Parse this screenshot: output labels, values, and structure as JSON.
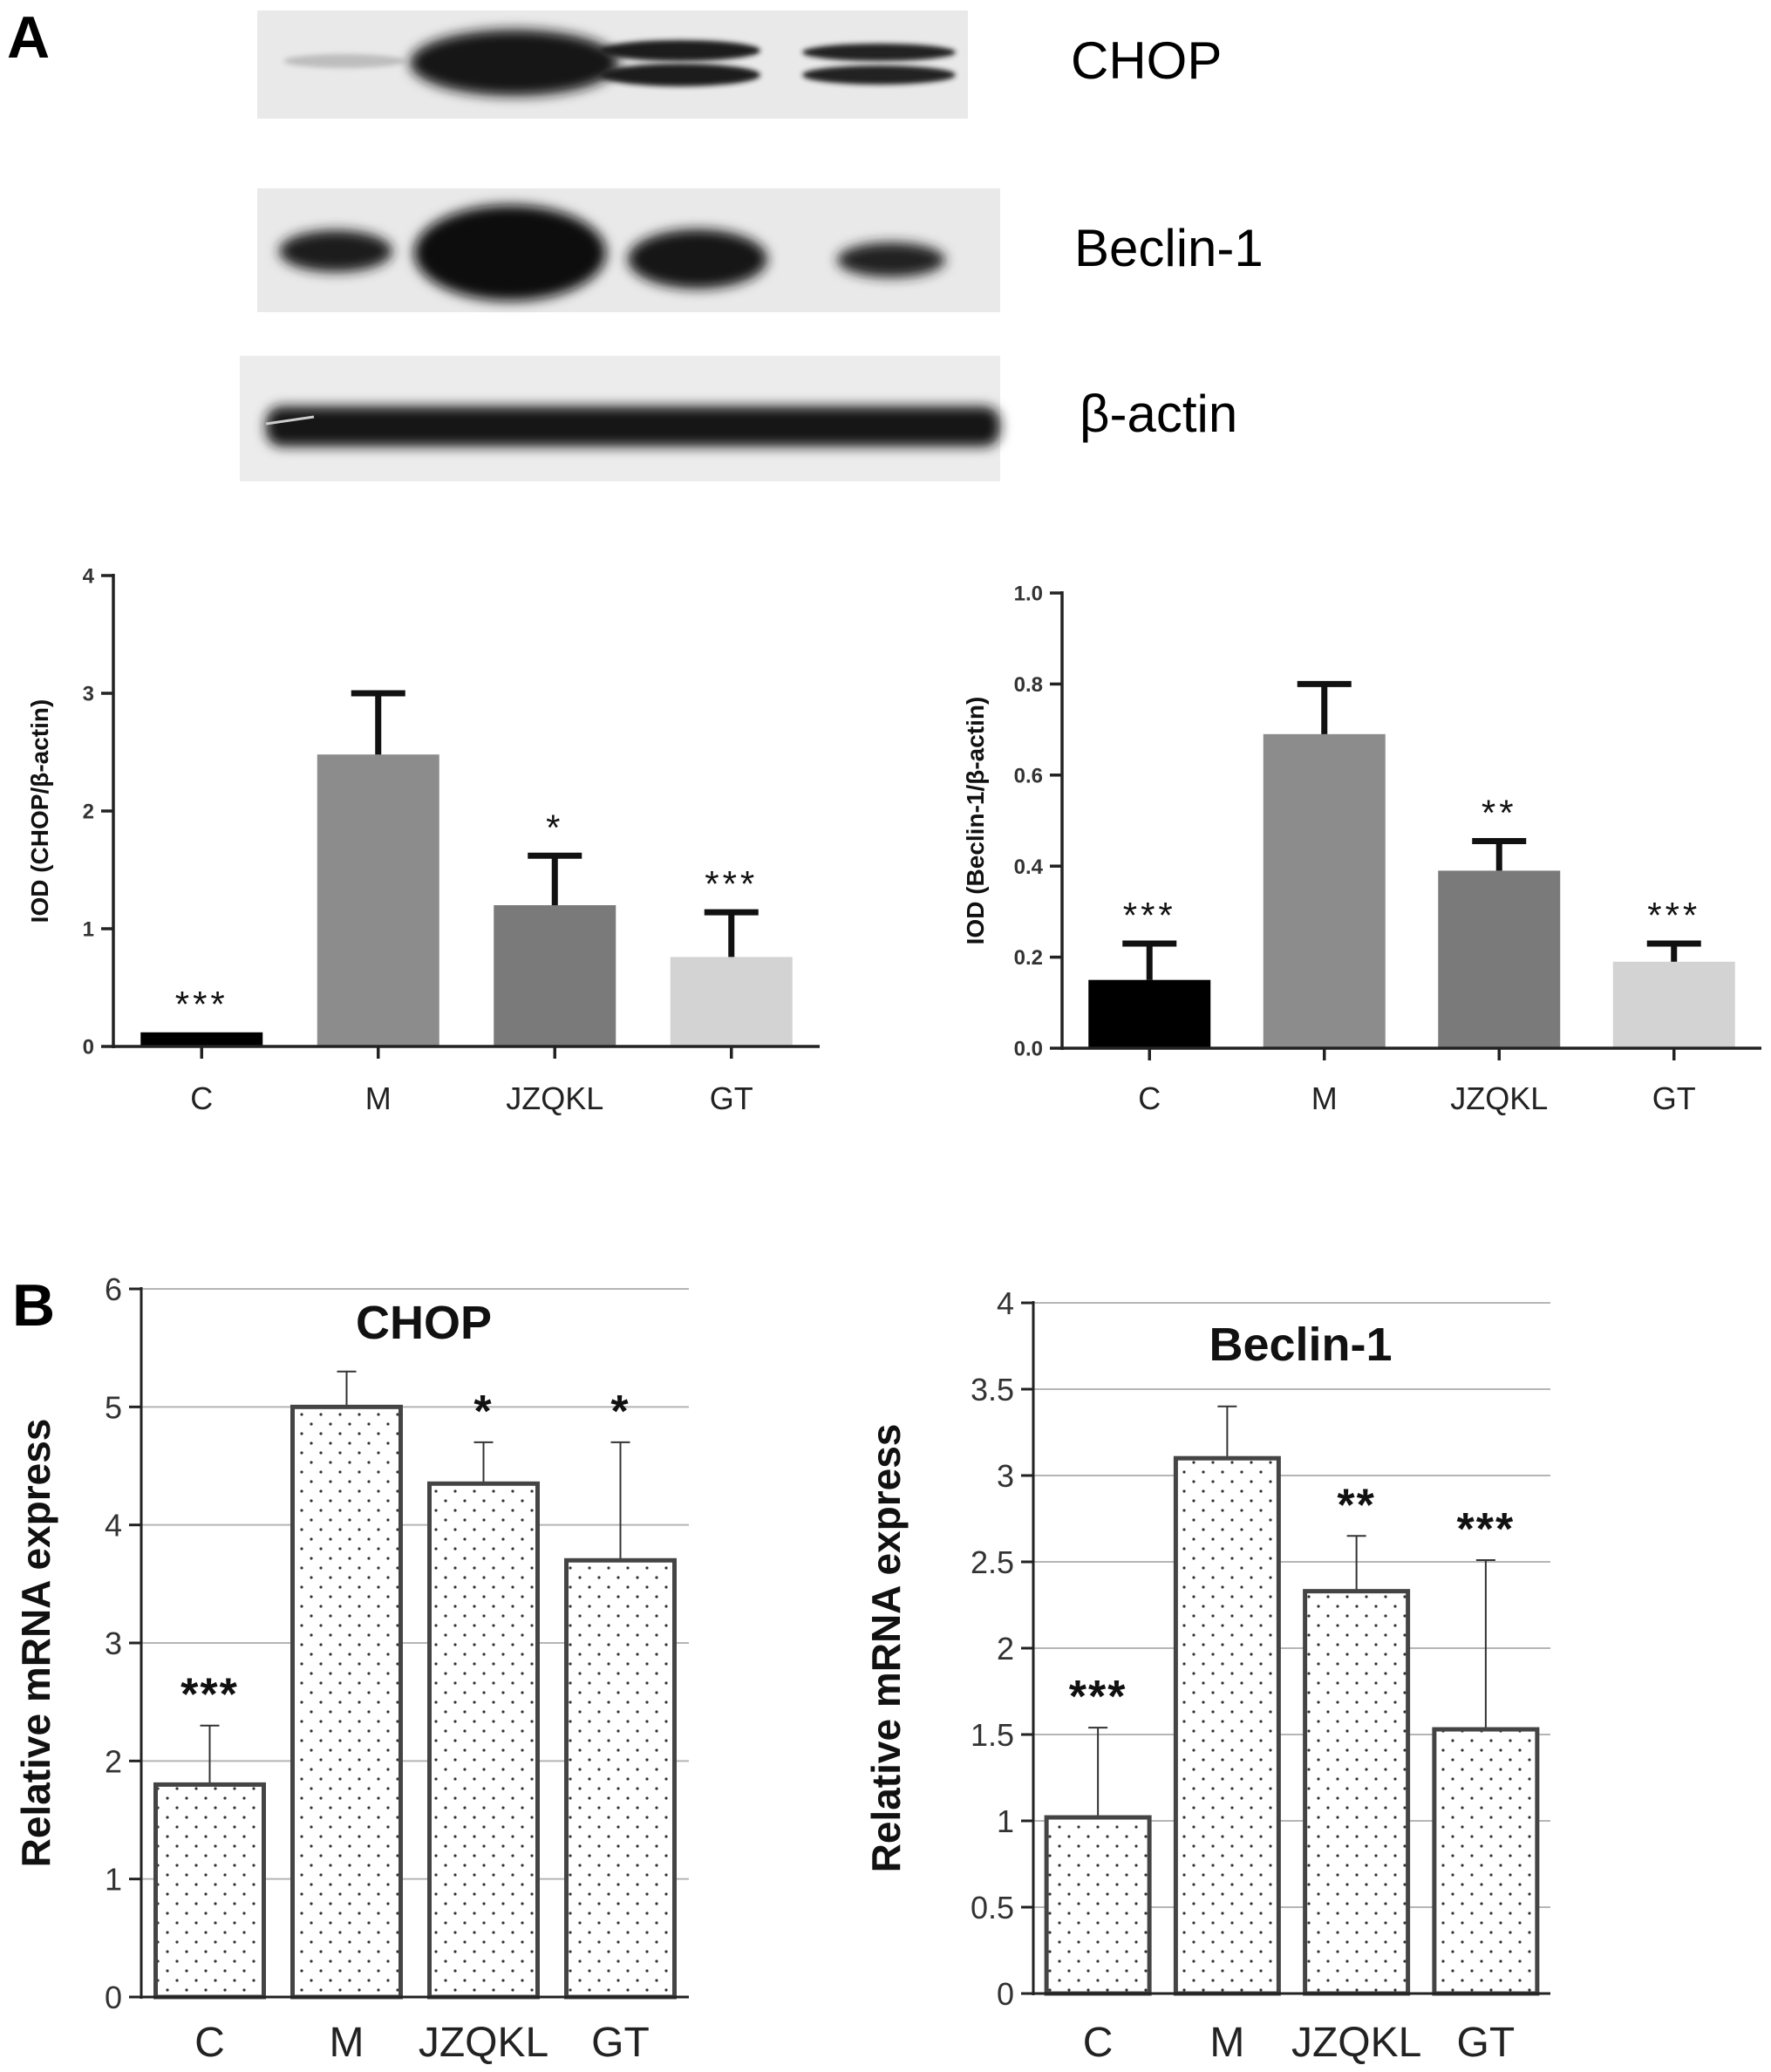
{
  "panel_labels": {
    "a": "A",
    "b": "B"
  },
  "blot": {
    "bands": [
      "CHOP",
      "Beclin-1",
      "β-actin"
    ]
  },
  "chart_data": [
    {
      "id": "a_chop",
      "type": "bar",
      "categories": [
        "C",
        "M",
        "JZQKL",
        "GT"
      ],
      "values": [
        0.12,
        2.48,
        1.2,
        0.76
      ],
      "errors": [
        0.0,
        0.52,
        0.42,
        0.38
      ],
      "annotations": [
        "***",
        "",
        "*",
        "***"
      ],
      "colors": [
        "#000000",
        "#8c8c8c",
        "#7a7a7a",
        "#d3d3d3"
      ],
      "ylabel": "IOD (CHOP/β-actin)",
      "ylim": [
        0,
        4
      ],
      "yticks": [
        "0",
        "1",
        "2",
        "3",
        "4"
      ],
      "grid": false
    },
    {
      "id": "a_beclin",
      "type": "bar",
      "categories": [
        "C",
        "M",
        "JZQKL",
        "GT"
      ],
      "values": [
        0.15,
        0.69,
        0.39,
        0.19
      ],
      "errors": [
        0.08,
        0.11,
        0.065,
        0.04
      ],
      "annotations": [
        "***",
        "",
        "**",
        "***"
      ],
      "colors": [
        "#000000",
        "#8c8c8c",
        "#7a7a7a",
        "#d3d3d3"
      ],
      "ylabel": "IOD (Beclin-1/β-actin)",
      "ylim": [
        0,
        1.0
      ],
      "yticks": [
        "0.0",
        "0.2",
        "0.4",
        "0.6",
        "0.8",
        "1.0"
      ],
      "grid": false
    },
    {
      "id": "b_chop",
      "type": "bar",
      "title": "CHOP",
      "categories": [
        "C",
        "M",
        "JZQKL",
        "GT"
      ],
      "values": [
        1.8,
        5.0,
        4.35,
        3.7
      ],
      "errors": [
        0.5,
        0.3,
        0.35,
        1.0
      ],
      "annotations": [
        "***",
        "",
        "*",
        "*"
      ],
      "ylabel": "Relative mRNA express",
      "ylim": [
        0,
        6
      ],
      "yticks": [
        "0",
        "1",
        "2",
        "3",
        "4",
        "5",
        "6"
      ],
      "grid": true,
      "fill": "dotted"
    },
    {
      "id": "b_beclin",
      "type": "bar",
      "title": "Beclin-1",
      "categories": [
        "C",
        "M",
        "JZQKL",
        "GT"
      ],
      "values": [
        1.02,
        3.1,
        2.33,
        1.53
      ],
      "errors": [
        0.52,
        0.3,
        0.32,
        0.98
      ],
      "annotations": [
        "***",
        "",
        "**",
        "***"
      ],
      "ylabel": "Relative mRNA express",
      "ylim": [
        0,
        4
      ],
      "yticks": [
        "0",
        "0.5",
        "1",
        "1.5",
        "2",
        "2.5",
        "3",
        "3.5",
        "4"
      ],
      "grid": true,
      "fill": "dotted"
    }
  ]
}
